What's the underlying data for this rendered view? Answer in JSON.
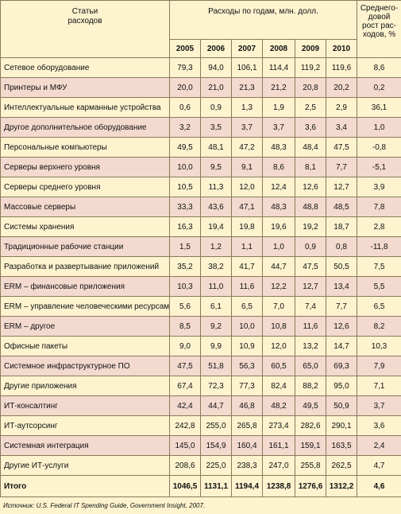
{
  "header": {
    "items_label_line1": "Статьи",
    "items_label_line2": "расходов",
    "years_group": "Расходы по годам, млн. долл.",
    "growth_label_line1": "Среднего-",
    "growth_label_line2": "довой",
    "growth_label_line3": "рост рас-",
    "growth_label_line4": "ходов, %",
    "years": [
      "2005",
      "2006",
      "2007",
      "2008",
      "2009",
      "2010"
    ]
  },
  "rows": [
    {
      "name": "Сетевое оборудование",
      "v": [
        "79,3",
        "94,0",
        "106,1",
        "114,4",
        "119,2",
        "119,6"
      ],
      "g": "8,6"
    },
    {
      "name": "Принтеры и МФУ",
      "v": [
        "20,0",
        "21,0",
        "21,3",
        "21,2",
        "20,8",
        "20,2"
      ],
      "g": "0,2"
    },
    {
      "name": "Интеллектуальные карманные устройства",
      "v": [
        "0,6",
        "0,9",
        "1,3",
        "1,9",
        "2,5",
        "2,9"
      ],
      "g": "36,1"
    },
    {
      "name": "Другое дополнительное оборудование",
      "v": [
        "3,2",
        "3,5",
        "3,7",
        "3,7",
        "3,6",
        "3,4"
      ],
      "g": "1,0"
    },
    {
      "name": "Персональные компьютеры",
      "v": [
        "49,5",
        "48,1",
        "47,2",
        "48,3",
        "48,4",
        "47,5"
      ],
      "g": "-0,8"
    },
    {
      "name": "Серверы верхнего уровня",
      "v": [
        "10,0",
        "9,5",
        "9,1",
        "8,6",
        "8,1",
        "7,7"
      ],
      "g": "-5,1"
    },
    {
      "name": "Серверы среднего уровня",
      "v": [
        "10,5",
        "11,3",
        "12,0",
        "12,4",
        "12,6",
        "12,7"
      ],
      "g": "3,9"
    },
    {
      "name": "Массовые серверы",
      "v": [
        "33,3",
        "43,6",
        "47,1",
        "48,3",
        "48,8",
        "48,5"
      ],
      "g": "7,8"
    },
    {
      "name": "Системы хранения",
      "v": [
        "16,3",
        "19,4",
        "19,8",
        "19,6",
        "19,2",
        "18,7"
      ],
      "g": "2,8"
    },
    {
      "name": "Традиционные рабочие станции",
      "v": [
        "1,5",
        "1,2",
        "1,1",
        "1,0",
        "0,9",
        "0,8"
      ],
      "g": "-11,8"
    },
    {
      "name": "Разработка и развертывание приложений",
      "v": [
        "35,2",
        "38,2",
        "41,7",
        "44,7",
        "47,5",
        "50,5"
      ],
      "g": "7,5"
    },
    {
      "name": "ERM – финансовые приложения",
      "v": [
        "10,3",
        "11,0",
        "11,6",
        "12,2",
        "12,7",
        "13,4"
      ],
      "g": "5,5"
    },
    {
      "name": "ERM – управление человеческими ресурсами",
      "v": [
        "5,6",
        "6,1",
        "6,5",
        "7,0",
        "7,4",
        "7,7"
      ],
      "g": "6,5"
    },
    {
      "name": "ERM – другое",
      "v": [
        "8,5",
        "9,2",
        "10,0",
        "10,8",
        "11,6",
        "12,6"
      ],
      "g": "8,2"
    },
    {
      "name": "Офисные пакеты",
      "v": [
        "9,0",
        "9,9",
        "10,9",
        "12,0",
        "13,2",
        "14,7"
      ],
      "g": "10,3"
    },
    {
      "name": "Системное инфраструктурное ПО",
      "v": [
        "47,5",
        "51,8",
        "56,3",
        "60,5",
        "65,0",
        "69,3"
      ],
      "g": "7,9"
    },
    {
      "name": "Другие приложения",
      "v": [
        "67,4",
        "72,3",
        "77,3",
        "82,4",
        "88,2",
        "95,0"
      ],
      "g": "7,1"
    },
    {
      "name": "ИТ-консалтинг",
      "v": [
        "42,4",
        "44,7",
        "46,8",
        "48,2",
        "49,5",
        "50,9"
      ],
      "g": "3,7"
    },
    {
      "name": "ИТ-аутсорсинг",
      "v": [
        "242,8",
        "255,0",
        "265,8",
        "273,4",
        "282,6",
        "290,1"
      ],
      "g": "3,6"
    },
    {
      "name": "Системная интеграция",
      "v": [
        "145,0",
        "154,9",
        "160,4",
        "161,1",
        "159,1",
        "163,5"
      ],
      "g": "2,4"
    },
    {
      "name": "Другие ИТ-услуги",
      "v": [
        "208,6",
        "225,0",
        "238,3",
        "247,0",
        "255,8",
        "262,5"
      ],
      "g": "4,7"
    }
  ],
  "total": {
    "name": "Итого",
    "v": [
      "1046,5",
      "1131,1",
      "1194,4",
      "1238,8",
      "1276,6",
      "1312,2"
    ],
    "g": "4,6"
  },
  "source": "Источник: U.S. Federal IT Spending Guide, Government Insight, 2007."
}
